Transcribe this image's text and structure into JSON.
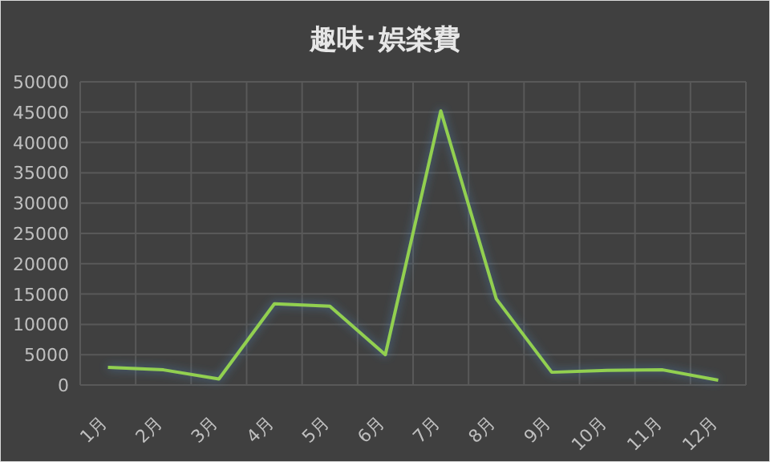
{
  "chart_data": {
    "type": "line",
    "title": "趣味･娯楽費",
    "categories": [
      "1月",
      "2月",
      "3月",
      "4月",
      "5月",
      "6月",
      "7月",
      "8月",
      "9月",
      "10月",
      "11月",
      "12月"
    ],
    "series": [
      {
        "color": "#92d050",
        "values": [
          2900,
          2500,
          1000,
          13400,
          13000,
          5000,
          45200,
          14200,
          2100,
          2400,
          2500,
          800
        ]
      }
    ],
    "ylim": [
      0,
      50000
    ],
    "yticks": [
      0,
      5000,
      10000,
      15000,
      20000,
      25000,
      30000,
      35000,
      40000,
      45000,
      50000
    ],
    "grid": true,
    "marker": "none",
    "line_style": "solid"
  }
}
